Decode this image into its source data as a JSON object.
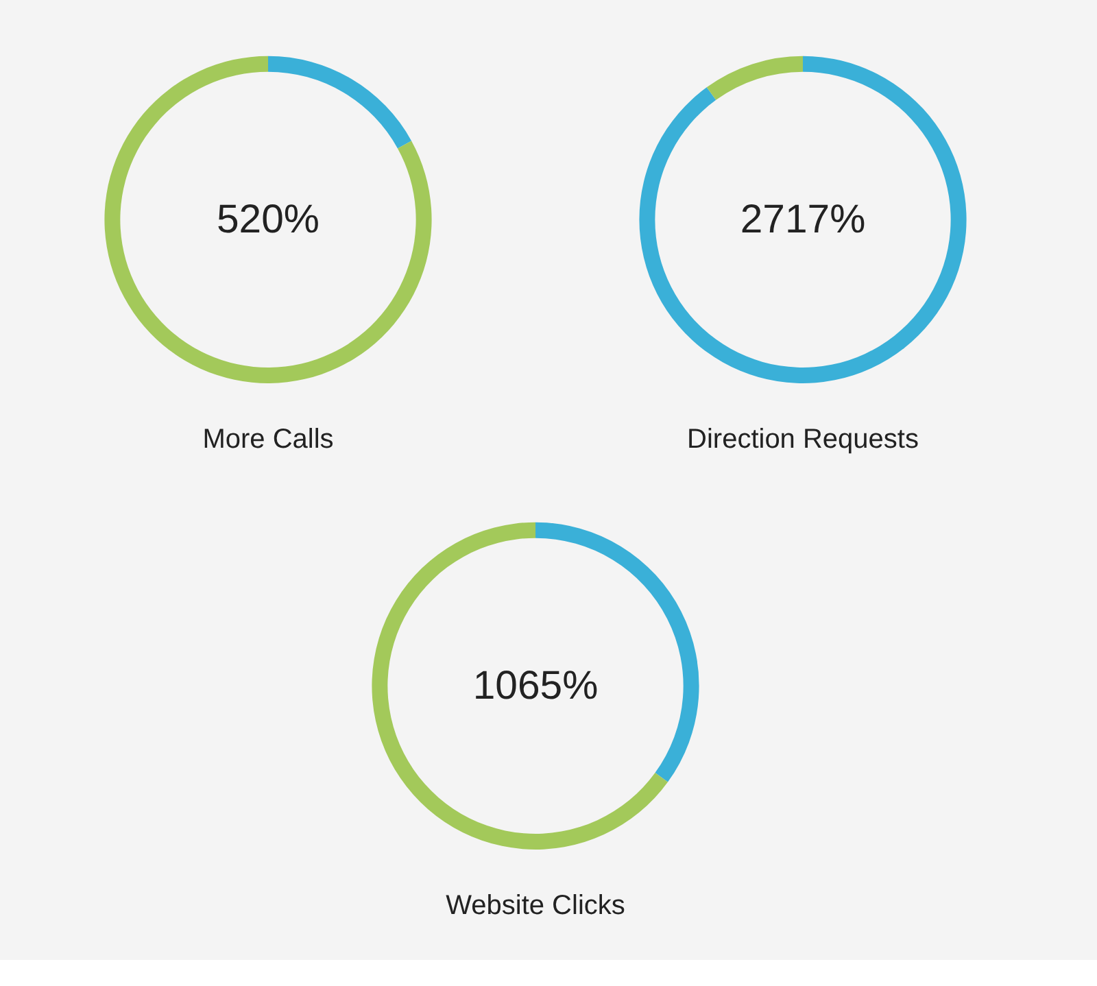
{
  "chart_data": [
    {
      "type": "donut",
      "title": "More Calls",
      "categories": [
        null,
        null
      ],
      "values": [
        17,
        83
      ],
      "colors": [
        "#3ab0d8",
        "#a3c95a"
      ],
      "annotations": [
        "520%"
      ]
    },
    {
      "type": "donut",
      "title": "Direction Requests",
      "categories": [
        null,
        null
      ],
      "values": [
        90,
        10
      ],
      "colors": [
        "#3ab0d8",
        "#a3c95a"
      ],
      "annotations": [
        "2717%"
      ]
    },
    {
      "type": "donut",
      "title": "Website Clicks",
      "categories": [
        null,
        null
      ],
      "values": [
        35,
        65
      ],
      "colors": [
        "#3ab0d8",
        "#a3c95a"
      ],
      "annotations": [
        "1065%"
      ]
    }
  ]
}
